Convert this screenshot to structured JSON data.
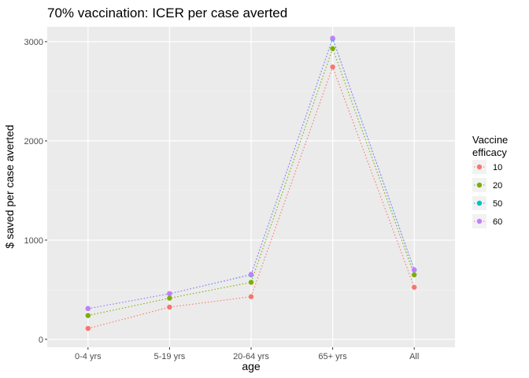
{
  "chart_data": {
    "type": "line",
    "title": "70% vaccination: ICER per case averted",
    "xlabel": "age",
    "ylabel": "$ saved per case averted",
    "categories": [
      "0-4 yrs",
      "5-19 yrs",
      "20-64 yrs",
      "65+ yrs",
      "All"
    ],
    "ylim": [
      -80,
      3150
    ],
    "yticks": [
      0,
      1000,
      2000,
      3000
    ],
    "grid": true,
    "line_style": "dotted",
    "legend": {
      "title": "Vaccine\nefficacy",
      "placement": "right"
    },
    "series": [
      {
        "name": "10",
        "color": "#F8766D",
        "values": [
          110,
          325,
          430,
          2745,
          525
        ]
      },
      {
        "name": "20",
        "color": "#7CAE00",
        "values": [
          240,
          415,
          575,
          2930,
          650
        ]
      },
      {
        "name": "50",
        "color": "#00BFC4",
        "values": [
          310,
          460,
          650,
          3030,
          700
        ]
      },
      {
        "name": "60",
        "color": "#C77CFF",
        "values": [
          310,
          460,
          655,
          3035,
          700
        ]
      }
    ]
  }
}
